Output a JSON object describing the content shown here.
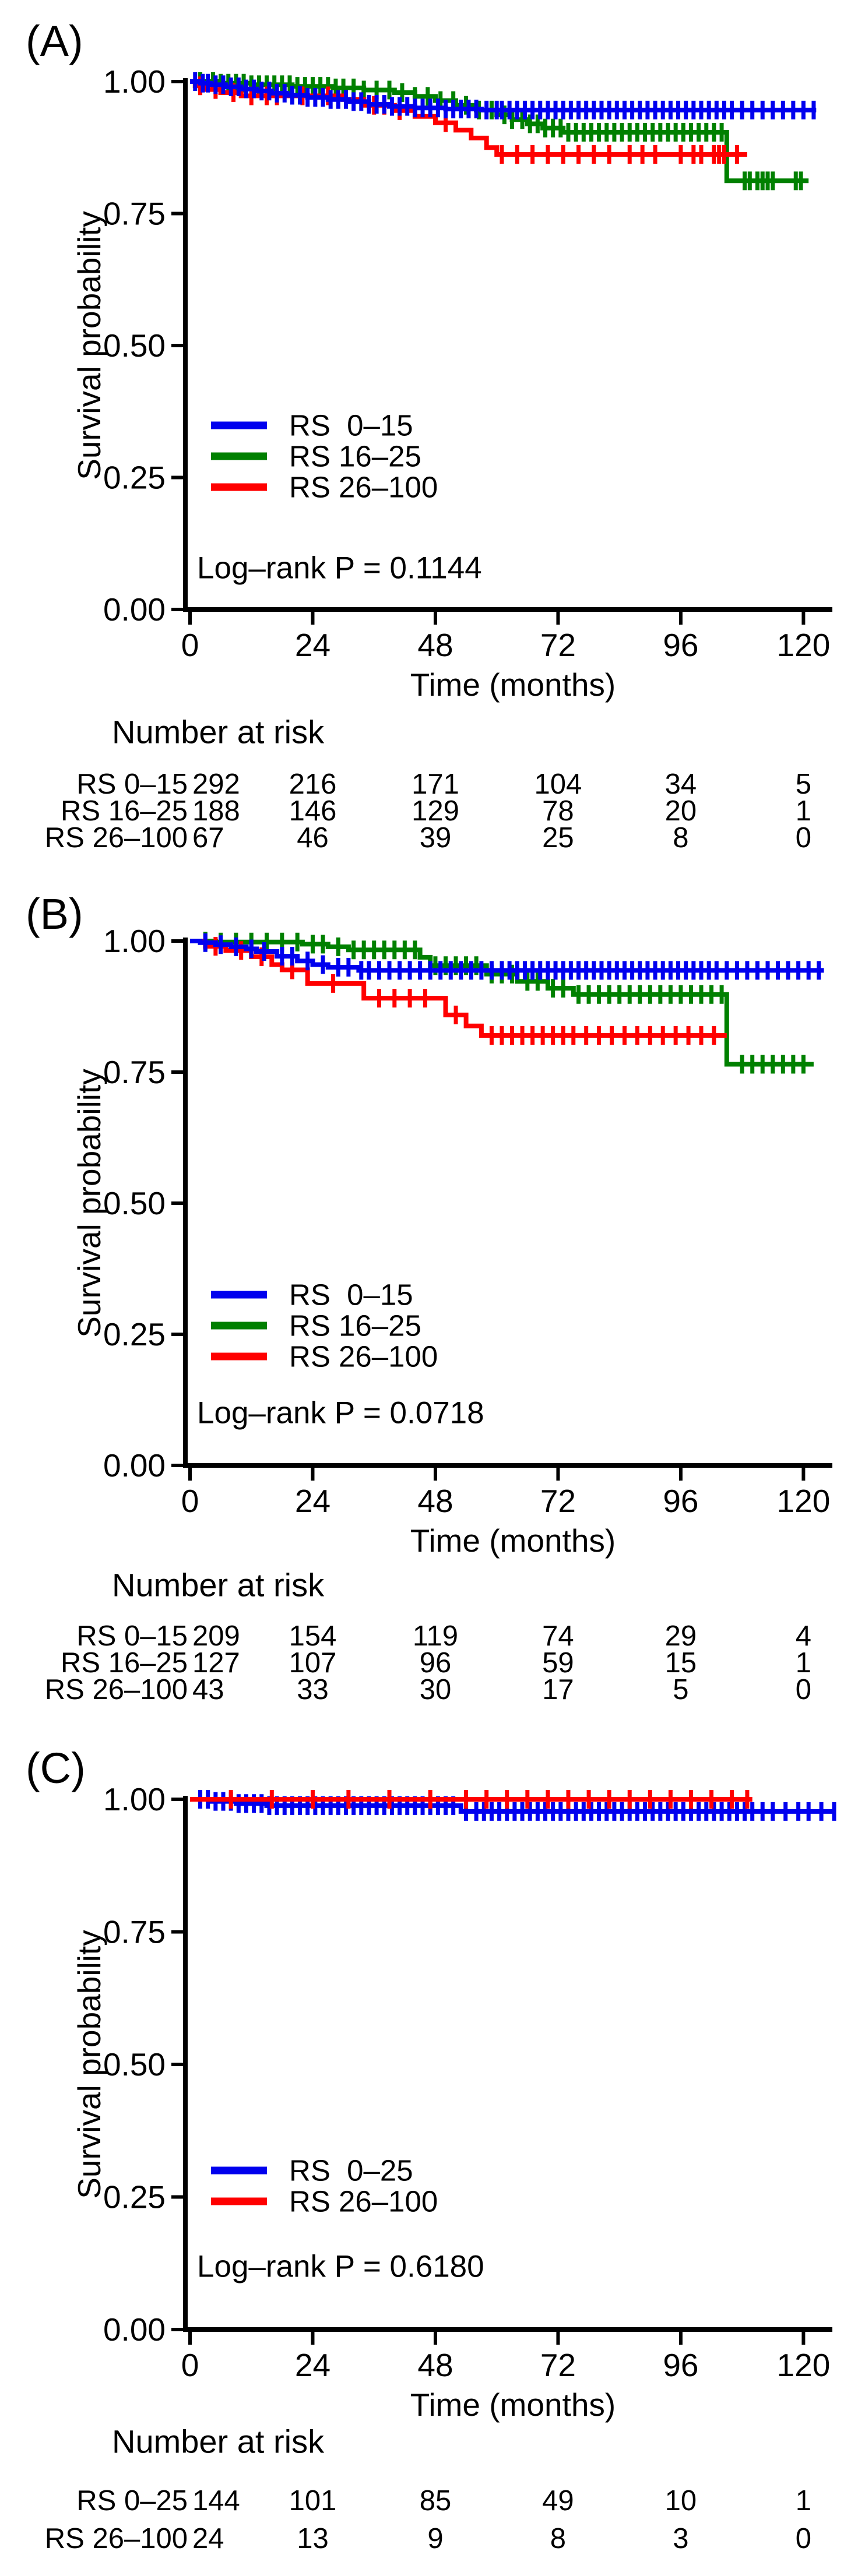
{
  "chart_data": [
    {
      "panel_label": "(A)",
      "type": "line",
      "subtype": "kaplan_meier_step",
      "xlabel": "Time (months)",
      "ylabel": "Survival probability",
      "xlim": [
        0,
        128
      ],
      "xticks": [
        0,
        24,
        48,
        72,
        96,
        120
      ],
      "ylim": [
        0,
        1
      ],
      "yticks": [
        1.0,
        0.75,
        0.5,
        0.25,
        0.0
      ],
      "ytick_labels": [
        "1.00",
        "0.75",
        "0.50",
        "0.25",
        "0.00"
      ],
      "grid": false,
      "legend_position": "inside-lower-left",
      "annotation": "Log–rank P = 0.1144",
      "legend": [
        {
          "label": "RS  0–15",
          "color": "#0000ee"
        },
        {
          "label": "RS 16–25",
          "color": "#008000"
        },
        {
          "label": "RS 26–100",
          "color": "#ff0000"
        }
      ],
      "series": [
        {
          "name": "RS 0–15",
          "color": "#0000ee",
          "steps": [
            [
              2,
              0.997
            ],
            [
              4,
              0.994
            ],
            [
              7,
              0.99
            ],
            [
              10,
              0.986
            ],
            [
              13,
              0.982
            ],
            [
              16,
              0.978
            ],
            [
              19,
              0.974
            ],
            [
              23,
              0.97
            ],
            [
              27,
              0.966
            ],
            [
              31,
              0.962
            ],
            [
              35,
              0.957
            ],
            [
              39,
              0.953
            ],
            [
              44,
              0.95
            ],
            [
              50,
              0.948
            ],
            [
              57,
              0.946
            ]
          ],
          "end_time": 122.5,
          "censor_times": [
            1,
            2.5,
            3.5,
            5,
            6.5,
            8,
            9.5,
            11,
            12.5,
            14,
            15.5,
            17,
            18.5,
            20,
            21.5,
            23,
            24.5,
            26,
            27.5,
            29,
            30.5,
            32,
            33.5,
            35,
            36.5,
            38,
            39.5,
            41,
            42.5,
            44,
            45.5,
            47,
            48.5,
            50,
            51.5,
            53,
            54.5,
            56,
            58,
            60,
            61,
            62.5,
            64,
            65.5,
            67,
            68.5,
            70,
            71.5,
            73,
            74.5,
            76,
            77.5,
            79,
            80.5,
            82,
            83.5,
            85,
            86.5,
            88,
            89.5,
            91,
            92.5,
            94,
            95.5,
            97,
            98.5,
            100,
            101.5,
            103,
            104.5,
            106,
            108,
            110,
            112,
            114,
            116,
            118,
            120,
            122
          ]
        },
        {
          "name": "RS 16–25",
          "color": "#008000",
          "steps": [
            [
              6,
              0.997
            ],
            [
              12,
              0.994
            ],
            [
              20,
              0.991
            ],
            [
              28,
              0.988
            ],
            [
              34,
              0.984
            ],
            [
              40,
              0.979
            ],
            [
              44,
              0.972
            ],
            [
              48,
              0.964
            ],
            [
              52,
              0.955
            ],
            [
              56,
              0.946
            ],
            [
              60,
              0.937
            ],
            [
              63,
              0.928
            ],
            [
              66,
              0.92
            ],
            [
              69,
              0.912
            ],
            [
              73,
              0.904
            ],
            [
              105,
              0.812
            ]
          ],
          "end_time": 121,
          "censor_times": [
            2,
            4.5,
            6,
            7.5,
            9,
            10.5,
            12,
            13.5,
            15,
            16.5,
            18,
            19.5,
            21,
            22.5,
            24,
            25.5,
            27,
            28.5,
            30,
            32,
            34,
            36.5,
            39,
            41.5,
            44,
            46.5,
            49,
            51.5,
            54,
            56.5,
            59,
            61.5,
            63,
            65,
            66.5,
            68,
            69.5,
            71,
            72.5,
            74,
            75.5,
            77,
            78.5,
            80,
            81.5,
            83,
            84.5,
            86,
            87.5,
            89,
            90.5,
            92,
            93.5,
            95,
            96.5,
            98,
            99.5,
            101,
            102.5,
            104,
            108.5,
            109.5,
            111,
            112,
            113,
            114,
            118.5,
            119.5
          ]
        },
        {
          "name": "RS 26–100",
          "color": "#ff0000",
          "steps": [
            [
              1,
              0.992
            ],
            [
              3,
              0.985
            ],
            [
              6,
              0.979
            ],
            [
              10,
              0.973
            ],
            [
              30,
              0.966
            ],
            [
              34,
              0.955
            ],
            [
              40,
              0.945
            ],
            [
              44,
              0.934
            ],
            [
              48,
              0.922
            ],
            [
              52,
              0.908
            ],
            [
              55,
              0.893
            ],
            [
              58,
              0.875
            ],
            [
              60,
              0.862
            ]
          ],
          "end_time": 109,
          "censor_times": [
            2,
            5,
            8.5,
            12,
            15,
            17,
            22,
            27,
            36,
            38,
            41,
            50,
            61,
            64,
            67,
            70,
            73,
            76,
            79,
            82,
            86,
            88.5,
            91,
            96,
            98.5,
            100,
            102.5,
            103.5,
            104.5,
            107
          ]
        }
      ],
      "number_at_risk": {
        "title": "Number at risk",
        "times": [
          0,
          24,
          48,
          72,
          96,
          120
        ],
        "rows": [
          {
            "label": "RS 0–15",
            "color": "#0000ee",
            "values": [
              292,
              216,
              171,
              104,
              34,
              5
            ]
          },
          {
            "label": "RS 16–25",
            "color": "#008000",
            "values": [
              188,
              146,
              129,
              78,
              20,
              1
            ]
          },
          {
            "label": "RS 26–100",
            "color": "#ff0000",
            "values": [
              67,
              46,
              39,
              25,
              8,
              0
            ]
          }
        ]
      }
    },
    {
      "panel_label": "(B)",
      "type": "line",
      "subtype": "kaplan_meier_step",
      "xlabel": "Time (months)",
      "ylabel": "Survival probability",
      "xlim": [
        0,
        128
      ],
      "xticks": [
        0,
        24,
        48,
        72,
        96,
        120
      ],
      "ylim": [
        0,
        1
      ],
      "yticks": [
        1.0,
        0.75,
        0.5,
        0.25,
        0.0
      ],
      "ytick_labels": [
        "1.00",
        "0.75",
        "0.50",
        "0.25",
        "0.00"
      ],
      "grid": false,
      "legend_position": "inside-lower-left",
      "annotation": "Log–rank P = 0.0718",
      "legend": [
        {
          "label": "RS  0–15",
          "color": "#0000ee"
        },
        {
          "label": "RS 16–25",
          "color": "#008000"
        },
        {
          "label": "RS 26–100",
          "color": "#ff0000"
        }
      ],
      "series": [
        {
          "name": "RS 0–15",
          "color": "#0000ee",
          "steps": [
            [
              2,
              0.997
            ],
            [
              5,
              0.993
            ],
            [
              8,
              0.989
            ],
            [
              11,
              0.985
            ],
            [
              13,
              0.98
            ],
            [
              17,
              0.971
            ],
            [
              21,
              0.962
            ],
            [
              24,
              0.955
            ],
            [
              27,
              0.95
            ],
            [
              33,
              0.944
            ]
          ],
          "end_time": 124,
          "censor_times": [
            3,
            6,
            9,
            12,
            14.5,
            18,
            20,
            23,
            26,
            29,
            31,
            33.5,
            35,
            37,
            39,
            41,
            43,
            45,
            47,
            49,
            51,
            53,
            55,
            57,
            59,
            61,
            62.5,
            64,
            65.5,
            67,
            68.5,
            70,
            71.5,
            73,
            74.5,
            76,
            77.5,
            79,
            80.5,
            82,
            83.5,
            85,
            86.5,
            88,
            89.5,
            91,
            92.5,
            94,
            95.5,
            97,
            98.5,
            100,
            101.5,
            103,
            105,
            107,
            109,
            111,
            113,
            115,
            117,
            119,
            121,
            123
          ]
        },
        {
          "name": "RS 16–25",
          "color": "#008000",
          "steps": [
            [
              5,
              0.998
            ],
            [
              22,
              0.994
            ],
            [
              27,
              0.989
            ],
            [
              31,
              0.983
            ],
            [
              45,
              0.969
            ],
            [
              47,
              0.953
            ],
            [
              58,
              0.937
            ],
            [
              64,
              0.923
            ],
            [
              70,
              0.91
            ],
            [
              75,
              0.898
            ],
            [
              105,
              0.765
            ]
          ],
          "end_time": 122,
          "censor_times": [
            3,
            6,
            9,
            12,
            15,
            18,
            21,
            24,
            26,
            29,
            32,
            34,
            36,
            38,
            40,
            42,
            44,
            48,
            50,
            52,
            54,
            56,
            59,
            61,
            63,
            66,
            68,
            71,
            73,
            76,
            78,
            80,
            82,
            84,
            86,
            88,
            90,
            92,
            94,
            96,
            98,
            100,
            102,
            104,
            108,
            110,
            112,
            114,
            116,
            118,
            120
          ]
        },
        {
          "name": "RS 26–100",
          "color": "#ff0000",
          "steps": [
            [
              3,
              0.99
            ],
            [
              7,
              0.982
            ],
            [
              12,
              0.97
            ],
            [
              16,
              0.955
            ],
            [
              18,
              0.945
            ],
            [
              23,
              0.919
            ],
            [
              34,
              0.891
            ],
            [
              50,
              0.859
            ],
            [
              54,
              0.838
            ],
            [
              57,
              0.82
            ]
          ],
          "end_time": 105,
          "censor_times": [
            5,
            10,
            14,
            20,
            28,
            37,
            40,
            43,
            46,
            52,
            59,
            61,
            63,
            65,
            67,
            69,
            71,
            73,
            75,
            77.5,
            80,
            82.5,
            85,
            87.5,
            90,
            92.5,
            95,
            97.5,
            100,
            102.5
          ]
        }
      ],
      "number_at_risk": {
        "title": "Number at risk",
        "times": [
          0,
          24,
          48,
          72,
          96,
          120
        ],
        "rows": [
          {
            "label": "RS 0–15",
            "color": "#0000ee",
            "values": [
              209,
              154,
              119,
              74,
              29,
              4
            ]
          },
          {
            "label": "RS 16–25",
            "color": "#008000",
            "values": [
              127,
              107,
              96,
              59,
              15,
              1
            ]
          },
          {
            "label": "RS 26–100",
            "color": "#ff0000",
            "values": [
              43,
              33,
              30,
              17,
              5,
              0
            ]
          }
        ]
      }
    },
    {
      "panel_label": "(C)",
      "type": "line",
      "subtype": "kaplan_meier_step",
      "xlabel": "Time (months)",
      "ylabel": "Survival probability",
      "xlim": [
        0,
        128
      ],
      "xticks": [
        0,
        24,
        48,
        72,
        96,
        120
      ],
      "ylim": [
        0,
        1
      ],
      "yticks": [
        1.0,
        0.75,
        0.5,
        0.25,
        0.0
      ],
      "ytick_labels": [
        "1.00",
        "0.75",
        "0.50",
        "0.25",
        "0.00"
      ],
      "grid": false,
      "legend_position": "inside-lower-left",
      "annotation": "Log–rank P = 0.6180",
      "legend": [
        {
          "label": "RS  0–25",
          "color": "#0000ee"
        },
        {
          "label": "RS 26–100",
          "color": "#ff0000"
        }
      ],
      "series": [
        {
          "name": "RS 0–25",
          "color": "#0000ee",
          "steps": [
            [
              4,
              0.996
            ],
            [
              9,
              0.992
            ],
            [
              15,
              0.988
            ],
            [
              53,
              0.977
            ]
          ],
          "end_time": 126,
          "censor_times": [
            2,
            3.5,
            5,
            6.5,
            8,
            9.5,
            11,
            12.5,
            14,
            15.5,
            17,
            18.5,
            20,
            21.5,
            23,
            24.5,
            26,
            27.5,
            29,
            30.5,
            32,
            33.5,
            35,
            36.5,
            38,
            39.5,
            41,
            42.5,
            44,
            45.5,
            47,
            48.5,
            50,
            51.5,
            54,
            56,
            57.5,
            59,
            60.5,
            62,
            63.5,
            65,
            66.5,
            68,
            69.5,
            71,
            72.5,
            74,
            75.5,
            77,
            78.5,
            80,
            81.5,
            83,
            84.5,
            86,
            87.5,
            89,
            90.5,
            92,
            93.5,
            95,
            96.5,
            98,
            99.5,
            101,
            102.5,
            104,
            105.5,
            107,
            108.5,
            110,
            112,
            114,
            116.5,
            119,
            121,
            123.5,
            126
          ]
        },
        {
          "name": "RS 26–100",
          "color": "#ff0000",
          "steps": [],
          "end_time": 110,
          "censor_times": [
            8,
            16,
            24,
            31,
            39,
            47,
            54,
            58,
            62,
            66,
            70,
            74,
            78,
            82,
            86,
            90,
            94,
            98,
            102,
            106,
            109
          ]
        }
      ],
      "number_at_risk": {
        "title": "Number at risk",
        "times": [
          0,
          24,
          48,
          72,
          96,
          120
        ],
        "rows": [
          {
            "label": "RS 0–25",
            "color": "#0000ee",
            "values": [
              144,
              101,
              85,
              49,
              10,
              1
            ]
          },
          {
            "label": "RS 26–100",
            "color": "#ff0000",
            "values": [
              24,
              13,
              9,
              8,
              3,
              0
            ]
          }
        ]
      }
    }
  ]
}
